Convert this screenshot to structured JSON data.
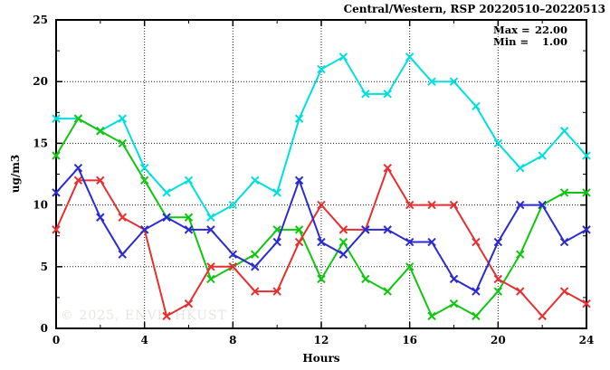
{
  "title": "Central/Western, RSP 20220510–20220513",
  "annotation": {
    "max_label": "Max =",
    "max_value": "22.00",
    "min_label": "Min =",
    "min_value": "1.00"
  },
  "watermark": "© 2025, ENVF, HKUST",
  "chart_data": {
    "type": "line",
    "title": "Central/Western, RSP 20220510–20220513",
    "xlabel": "Hours",
    "ylabel": "ug/m3",
    "xlim": [
      0,
      24
    ],
    "ylim": [
      0,
      25
    ],
    "x_major_ticks": [
      0,
      4,
      8,
      12,
      16,
      20,
      24
    ],
    "x_minor_step": 2,
    "y_major_ticks": [
      0,
      5,
      10,
      15,
      20,
      25
    ],
    "y_minor_step": 2.5,
    "grid": "dotted black lines at major ticks, frame on all four sides with inward ticks",
    "legend_position": "none",
    "stat_max": 22.0,
    "stat_min": 1.0,
    "marker": "x-cross",
    "x": [
      0,
      1,
      2,
      3,
      4,
      5,
      6,
      7,
      8,
      9,
      10,
      11,
      12,
      13,
      14,
      15,
      16,
      17,
      18,
      19,
      20,
      21,
      22,
      23,
      24
    ],
    "series": [
      {
        "name": "cyan",
        "color": "#00DFDF",
        "values": [
          17,
          17,
          16,
          17,
          13,
          11,
          12,
          9,
          10,
          12,
          11,
          17,
          21,
          22,
          19,
          19,
          22,
          20,
          20,
          18,
          15,
          13,
          14,
          16,
          14
        ]
      },
      {
        "name": "green",
        "color": "#0FC70F",
        "values": [
          14,
          17,
          16,
          15,
          12,
          9,
          9,
          4,
          5,
          6,
          8,
          8,
          4,
          7,
          4,
          3,
          5,
          1,
          2,
          1,
          3,
          6,
          10,
          11,
          11
        ]
      },
      {
        "name": "red",
        "color": "#E53030",
        "values": [
          8,
          12,
          12,
          9,
          8,
          1,
          2,
          5,
          5,
          3,
          3,
          7,
          10,
          8,
          8,
          13,
          10,
          10,
          10,
          7,
          4,
          3,
          1,
          3,
          2
        ]
      },
      {
        "name": "blue",
        "color": "#2B2BD0",
        "values": [
          11,
          13,
          9,
          6,
          8,
          9,
          8,
          8,
          6,
          5,
          7,
          12,
          7,
          6,
          8,
          8,
          7,
          7,
          4,
          3,
          7,
          10,
          10,
          7,
          8
        ]
      }
    ]
  }
}
